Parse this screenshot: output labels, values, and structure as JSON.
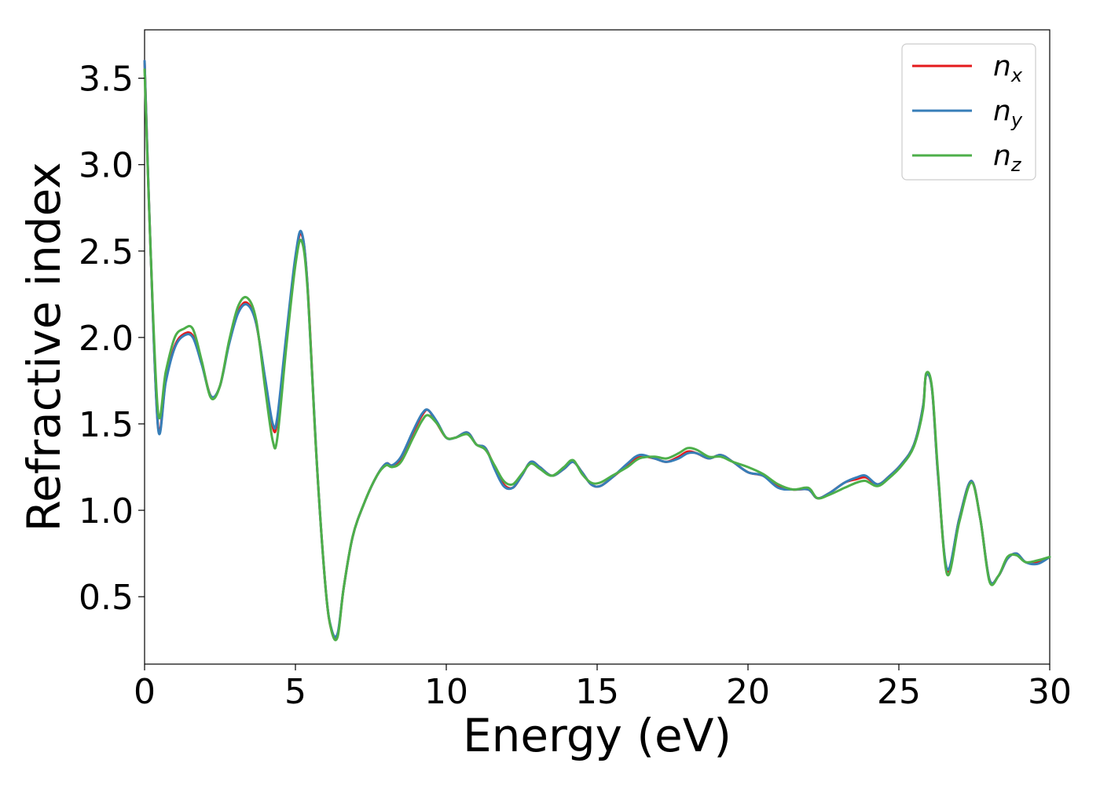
{
  "chart_data": {
    "type": "line",
    "title": "",
    "xlabel": "Energy (eV)",
    "ylabel": "Refractive index",
    "xlim": [
      0,
      30
    ],
    "ylim": [
      0.11,
      3.78
    ],
    "xticks": [
      0,
      5,
      10,
      15,
      20,
      25,
      30
    ],
    "xtick_labels": [
      "0",
      "5",
      "10",
      "15",
      "20",
      "25",
      "30"
    ],
    "yticks": [
      0.5,
      1.0,
      1.5,
      2.0,
      2.5,
      3.0,
      3.5
    ],
    "ytick_labels": [
      "0.5",
      "1.0",
      "1.5",
      "2.0",
      "2.5",
      "3.0",
      "3.5"
    ],
    "grid": false,
    "legend": "top-right",
    "series": [
      {
        "name": "n_x",
        "label_base": "n",
        "label_sub": "x",
        "color": "#e41a1c",
        "x": [
          0,
          0.2,
          0.45,
          0.7,
          1.0,
          1.3,
          1.6,
          1.9,
          2.2,
          2.5,
          2.8,
          3.1,
          3.4,
          3.7,
          4.0,
          4.25,
          4.4,
          4.7,
          5.0,
          5.2,
          5.4,
          5.7,
          6.0,
          6.2,
          6.4,
          6.6,
          6.9,
          7.3,
          7.7,
          8.0,
          8.2,
          8.5,
          8.9,
          9.2,
          9.4,
          9.7,
          10.0,
          10.3,
          10.7,
          11.0,
          11.3,
          11.6,
          11.9,
          12.2,
          12.5,
          12.8,
          13.1,
          13.5,
          13.9,
          14.2,
          14.5,
          14.8,
          15.1,
          15.5,
          16.0,
          16.4,
          16.9,
          17.3,
          17.7,
          18.0,
          18.3,
          18.7,
          19.1,
          19.5,
          20.0,
          20.5,
          21.0,
          21.5,
          22.0,
          22.3,
          22.7,
          23.2,
          23.6,
          23.9,
          24.3,
          24.7,
          25.1,
          25.5,
          25.8,
          25.9,
          26.1,
          26.3,
          26.6,
          27.0,
          27.4,
          27.7,
          28.0,
          28.3,
          28.6,
          28.9,
          29.2,
          29.6,
          30.0
        ],
        "values": [
          3.6,
          2.5,
          1.48,
          1.75,
          1.95,
          2.02,
          2.01,
          1.85,
          1.66,
          1.72,
          1.97,
          2.15,
          2.2,
          2.08,
          1.75,
          1.48,
          1.52,
          2.0,
          2.45,
          2.6,
          2.3,
          1.3,
          0.55,
          0.3,
          0.28,
          0.55,
          0.85,
          1.05,
          1.2,
          1.27,
          1.26,
          1.3,
          1.45,
          1.55,
          1.58,
          1.5,
          1.42,
          1.42,
          1.45,
          1.38,
          1.36,
          1.25,
          1.15,
          1.13,
          1.2,
          1.28,
          1.25,
          1.2,
          1.24,
          1.28,
          1.22,
          1.15,
          1.14,
          1.19,
          1.26,
          1.31,
          1.3,
          1.28,
          1.31,
          1.34,
          1.33,
          1.3,
          1.32,
          1.28,
          1.22,
          1.2,
          1.14,
          1.12,
          1.12,
          1.07,
          1.1,
          1.16,
          1.18,
          1.19,
          1.15,
          1.2,
          1.27,
          1.38,
          1.6,
          1.78,
          1.7,
          1.2,
          0.65,
          0.95,
          1.17,
          0.95,
          0.6,
          0.62,
          0.72,
          0.75,
          0.7,
          0.7,
          0.73
        ]
      },
      {
        "name": "n_y",
        "label_base": "n",
        "label_sub": "y",
        "color": "#377eb8",
        "x": [
          0,
          0.2,
          0.45,
          0.7,
          1.0,
          1.3,
          1.6,
          1.9,
          2.2,
          2.5,
          2.8,
          3.1,
          3.4,
          3.7,
          4.0,
          4.25,
          4.4,
          4.7,
          5.0,
          5.2,
          5.4,
          5.7,
          6.0,
          6.2,
          6.4,
          6.6,
          6.9,
          7.3,
          7.7,
          8.0,
          8.2,
          8.5,
          8.9,
          9.2,
          9.4,
          9.7,
          10.0,
          10.3,
          10.7,
          11.0,
          11.3,
          11.6,
          11.9,
          12.2,
          12.5,
          12.8,
          13.1,
          13.5,
          13.9,
          14.2,
          14.5,
          14.8,
          15.1,
          15.5,
          16.0,
          16.4,
          16.9,
          17.3,
          17.7,
          18.0,
          18.3,
          18.7,
          19.1,
          19.5,
          20.0,
          20.5,
          21.0,
          21.5,
          22.0,
          22.3,
          22.7,
          23.2,
          23.6,
          23.9,
          24.3,
          24.7,
          25.1,
          25.5,
          25.8,
          25.9,
          26.1,
          26.3,
          26.6,
          27.0,
          27.4,
          27.7,
          28.0,
          28.3,
          28.6,
          28.9,
          29.2,
          29.6,
          30.0
        ],
        "values": [
          3.6,
          2.5,
          1.47,
          1.74,
          1.94,
          2.01,
          2.0,
          1.84,
          1.66,
          1.72,
          1.96,
          2.14,
          2.19,
          2.08,
          1.76,
          1.5,
          1.54,
          2.02,
          2.47,
          2.61,
          2.3,
          1.3,
          0.55,
          0.31,
          0.29,
          0.55,
          0.85,
          1.05,
          1.2,
          1.27,
          1.26,
          1.31,
          1.46,
          1.56,
          1.58,
          1.51,
          1.42,
          1.42,
          1.45,
          1.38,
          1.36,
          1.24,
          1.14,
          1.13,
          1.2,
          1.28,
          1.25,
          1.2,
          1.24,
          1.28,
          1.22,
          1.15,
          1.14,
          1.19,
          1.27,
          1.32,
          1.3,
          1.28,
          1.3,
          1.33,
          1.33,
          1.3,
          1.32,
          1.28,
          1.22,
          1.2,
          1.13,
          1.12,
          1.12,
          1.07,
          1.1,
          1.16,
          1.19,
          1.2,
          1.15,
          1.2,
          1.27,
          1.38,
          1.6,
          1.78,
          1.7,
          1.2,
          0.66,
          0.95,
          1.17,
          0.95,
          0.6,
          0.62,
          0.72,
          0.75,
          0.7,
          0.69,
          0.73
        ]
      },
      {
        "name": "n_z",
        "label_base": "n",
        "label_sub": "z",
        "color": "#4daf4a",
        "x": [
          0,
          0.2,
          0.45,
          0.7,
          1.0,
          1.3,
          1.6,
          1.9,
          2.2,
          2.5,
          2.8,
          3.1,
          3.4,
          3.7,
          4.0,
          4.25,
          4.4,
          4.7,
          5.0,
          5.2,
          5.4,
          5.7,
          6.0,
          6.2,
          6.4,
          6.6,
          6.9,
          7.3,
          7.7,
          8.0,
          8.2,
          8.5,
          8.9,
          9.2,
          9.4,
          9.7,
          10.0,
          10.3,
          10.7,
          11.0,
          11.3,
          11.6,
          11.9,
          12.2,
          12.5,
          12.8,
          13.1,
          13.5,
          13.9,
          14.2,
          14.5,
          14.8,
          15.1,
          15.5,
          16.0,
          16.4,
          16.9,
          17.3,
          17.7,
          18.0,
          18.3,
          18.7,
          19.1,
          19.5,
          20.0,
          20.5,
          21.0,
          21.5,
          22.0,
          22.3,
          22.7,
          23.2,
          23.6,
          23.9,
          24.3,
          24.7,
          25.1,
          25.5,
          25.8,
          25.9,
          26.1,
          26.3,
          26.6,
          27.0,
          27.4,
          27.7,
          28.0,
          28.3,
          28.6,
          28.9,
          29.2,
          29.6,
          30.0
        ],
        "values": [
          3.55,
          2.5,
          1.56,
          1.8,
          2.0,
          2.05,
          2.05,
          1.86,
          1.65,
          1.72,
          1.98,
          2.18,
          2.23,
          2.1,
          1.7,
          1.4,
          1.42,
          1.95,
          2.42,
          2.56,
          2.28,
          1.3,
          0.55,
          0.3,
          0.27,
          0.55,
          0.85,
          1.05,
          1.2,
          1.26,
          1.25,
          1.28,
          1.42,
          1.52,
          1.55,
          1.5,
          1.42,
          1.42,
          1.44,
          1.38,
          1.35,
          1.26,
          1.17,
          1.15,
          1.21,
          1.27,
          1.24,
          1.2,
          1.25,
          1.29,
          1.21,
          1.16,
          1.16,
          1.2,
          1.25,
          1.3,
          1.31,
          1.3,
          1.33,
          1.36,
          1.35,
          1.31,
          1.31,
          1.28,
          1.25,
          1.21,
          1.15,
          1.12,
          1.13,
          1.07,
          1.09,
          1.13,
          1.16,
          1.17,
          1.14,
          1.19,
          1.26,
          1.37,
          1.58,
          1.79,
          1.71,
          1.22,
          0.63,
          0.93,
          1.16,
          0.95,
          0.59,
          0.62,
          0.73,
          0.74,
          0.7,
          0.71,
          0.73
        ]
      }
    ]
  }
}
